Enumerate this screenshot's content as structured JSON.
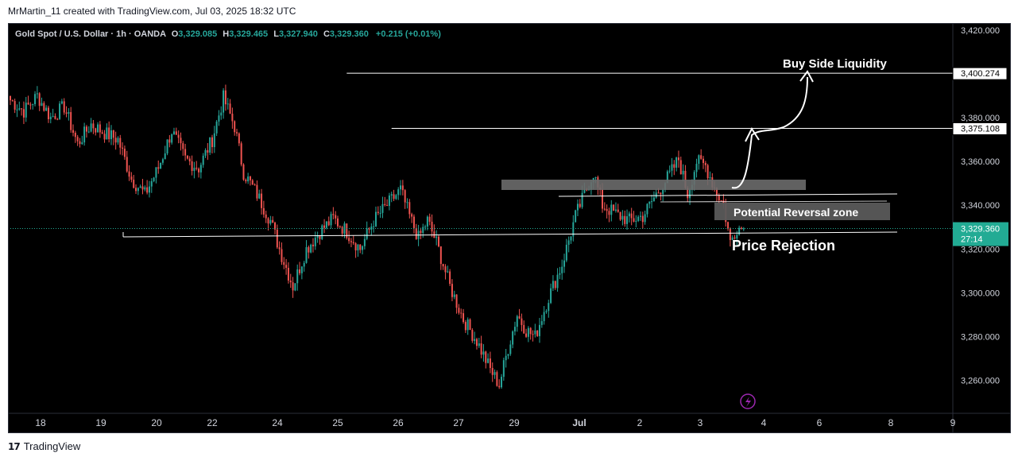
{
  "header": {
    "credit": "MrMartin_11 created with TradingView.com, Jul 03, 2025 18:32 UTC"
  },
  "footer": {
    "brand": "TradingView",
    "logo_icon": "tradingview-logo-icon"
  },
  "legend": {
    "symbol": "Gold Spot / U.S. Dollar · 1h · OANDA",
    "o_label": "O",
    "o_value": "3,329.085",
    "h_label": "H",
    "h_value": "3,329.465",
    "l_label": "L",
    "l_value": "3,327.940",
    "c_label": "C",
    "c_value": "3,329.360",
    "change": "+0.215 (+0.01%)"
  },
  "colors": {
    "up": "#26a69a",
    "down": "#ef5350",
    "background": "#000000",
    "price_tag": "#22ab94"
  },
  "chart_data": {
    "type": "candlestick",
    "title": "Gold Spot / U.S. Dollar · 1h · OANDA",
    "xlabel": "",
    "ylabel": "",
    "ylim": [
      3245,
      3425
    ],
    "y_ticks": [
      "3,420.000",
      "3,400.000",
      "3,380.000",
      "3,360.000",
      "3,340.000",
      "3,320.000",
      "3,300.000",
      "3,280.000",
      "3,260.000"
    ],
    "y_tick_values": [
      3420,
      3400,
      3380,
      3360,
      3340,
      3320,
      3300,
      3280,
      3260
    ],
    "x_tick_labels": [
      "18",
      "19",
      "20",
      "22",
      "24",
      "25",
      "26",
      "27",
      "29",
      "Jul",
      "2",
      "3",
      "4",
      "6",
      "8",
      "9"
    ],
    "price_path": [
      {
        "i": 0,
        "p": 3388
      },
      {
        "i": 6,
        "p": 3383
      },
      {
        "i": 12,
        "p": 3390
      },
      {
        "i": 18,
        "p": 3380
      },
      {
        "i": 24,
        "p": 3385
      },
      {
        "i": 30,
        "p": 3368
      },
      {
        "i": 36,
        "p": 3377
      },
      {
        "i": 42,
        "p": 3373
      },
      {
        "i": 48,
        "p": 3370
      },
      {
        "i": 54,
        "p": 3352
      },
      {
        "i": 60,
        "p": 3345
      },
      {
        "i": 66,
        "p": 3357
      },
      {
        "i": 72,
        "p": 3374
      },
      {
        "i": 78,
        "p": 3361
      },
      {
        "i": 84,
        "p": 3357
      },
      {
        "i": 90,
        "p": 3370
      },
      {
        "i": 95,
        "p": 3389
      },
      {
        "i": 100,
        "p": 3376
      },
      {
        "i": 104,
        "p": 3355
      },
      {
        "i": 110,
        "p": 3345
      },
      {
        "i": 116,
        "p": 3333
      },
      {
        "i": 120,
        "p": 3320
      },
      {
        "i": 126,
        "p": 3303
      },
      {
        "i": 132,
        "p": 3320
      },
      {
        "i": 138,
        "p": 3328
      },
      {
        "i": 144,
        "p": 3334
      },
      {
        "i": 150,
        "p": 3328
      },
      {
        "i": 156,
        "p": 3320
      },
      {
        "i": 162,
        "p": 3333
      },
      {
        "i": 168,
        "p": 3340
      },
      {
        "i": 174,
        "p": 3347
      },
      {
        "i": 178,
        "p": 3335
      },
      {
        "i": 182,
        "p": 3325
      },
      {
        "i": 186,
        "p": 3333
      },
      {
        "i": 190,
        "p": 3323
      },
      {
        "i": 196,
        "p": 3303
      },
      {
        "i": 202,
        "p": 3288
      },
      {
        "i": 208,
        "p": 3278
      },
      {
        "i": 214,
        "p": 3265
      },
      {
        "i": 218,
        "p": 3258
      },
      {
        "i": 222,
        "p": 3275
      },
      {
        "i": 226,
        "p": 3290
      },
      {
        "i": 230,
        "p": 3283
      },
      {
        "i": 234,
        "p": 3280
      },
      {
        "i": 240,
        "p": 3298
      },
      {
        "i": 246,
        "p": 3313
      },
      {
        "i": 252,
        "p": 3335
      },
      {
        "i": 256,
        "p": 3345
      },
      {
        "i": 260,
        "p": 3355
      },
      {
        "i": 264,
        "p": 3340
      },
      {
        "i": 270,
        "p": 3336
      },
      {
        "i": 276,
        "p": 3333
      },
      {
        "i": 282,
        "p": 3335
      },
      {
        "i": 288,
        "p": 3345
      },
      {
        "i": 294,
        "p": 3354
      },
      {
        "i": 298,
        "p": 3361
      },
      {
        "i": 302,
        "p": 3345
      },
      {
        "i": 306,
        "p": 3360
      },
      {
        "i": 310,
        "p": 3358
      },
      {
        "i": 314,
        "p": 3348
      },
      {
        "i": 318,
        "p": 3340
      },
      {
        "i": 321,
        "p": 3323
      },
      {
        "i": 324,
        "p": 3330
      },
      {
        "i": 327,
        "p": 3329.36
      }
    ],
    "levels": [
      {
        "price": 3400.274,
        "label": "3,400.274",
        "left_index": 150
      },
      {
        "price": 3375.108,
        "label": "3,375.108",
        "left_index": 170
      },
      {
        "price": 3329.36,
        "label": "3,329.360",
        "left_index": 0
      }
    ],
    "current_price": {
      "value": 3329.36,
      "label": "3,329.360",
      "countdown": "27:14"
    },
    "annotations": [
      {
        "text": "Buy Side Liquidity"
      },
      {
        "text": "Potential Reversal zone"
      },
      {
        "text": "Price Rejection"
      }
    ]
  }
}
